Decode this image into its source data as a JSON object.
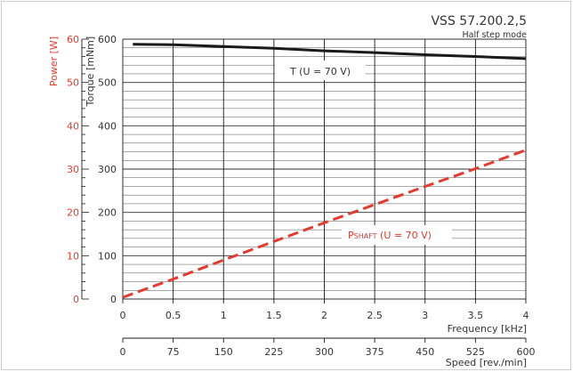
{
  "header": {
    "model": "VSS 57.200.2,5",
    "mode": "Half step mode"
  },
  "colors": {
    "torque": "#1a1a1a",
    "power": "#e53a2e",
    "grid": "#1a1a1a",
    "text": "#333333"
  },
  "chart_data": {
    "type": "line",
    "title": "VSS 57.200.2,5",
    "subtitle": "Half step mode",
    "xlabel": "Frequency [kHz]",
    "xlim": [
      0,
      4
    ],
    "x_ticks": [
      0,
      0.5,
      1,
      1.5,
      2,
      2.5,
      3,
      3.5,
      4
    ],
    "x_tick_labels": [
      "0",
      "0.5",
      "1",
      "1.5",
      "2",
      "2.5",
      "3",
      "3.5",
      "4"
    ],
    "x2label": "Speed [rev./min]",
    "x2_ticks": [
      0,
      75,
      150,
      225,
      300,
      375,
      450,
      525,
      600
    ],
    "x2_tick_labels": [
      "0",
      "75",
      "150",
      "225",
      "300",
      "375",
      "450",
      "525",
      "600"
    ],
    "ylabel": "Torque [mNm]",
    "ylim": [
      0,
      600
    ],
    "y_ticks": [
      0,
      100,
      200,
      300,
      400,
      500,
      600
    ],
    "y_tick_labels": [
      "0",
      "100",
      "200",
      "300",
      "400",
      "500",
      "600"
    ],
    "y2label": "Power [W]",
    "y2lim": [
      0,
      60
    ],
    "y2_ticks": [
      0,
      10,
      20,
      30,
      40,
      50,
      60
    ],
    "y2_tick_labels": [
      "0",
      "10",
      "20",
      "30",
      "40",
      "50",
      "60"
    ],
    "grid": true,
    "series": [
      {
        "name": "T (U = 70 V)",
        "axis": "left",
        "style": "solid",
        "x": [
          0.1,
          0.5,
          1.0,
          1.5,
          2.0,
          2.5,
          3.0,
          3.5,
          4.0
        ],
        "y": [
          588,
          587,
          583,
          579,
          573,
          569,
          564,
          560,
          555
        ]
      },
      {
        "name_main": "P",
        "name_sub": "SHAFT",
        "name_suffix": " (U = 70 V)",
        "axis": "right",
        "style": "dashed",
        "x": [
          0.0,
          0.5,
          1.0,
          1.5,
          2.0,
          2.5,
          3.0,
          3.5,
          4.0
        ],
        "y": [
          0.4,
          4.6,
          9.0,
          13.3,
          17.6,
          21.8,
          26.0,
          30.1,
          34.4
        ]
      }
    ]
  }
}
